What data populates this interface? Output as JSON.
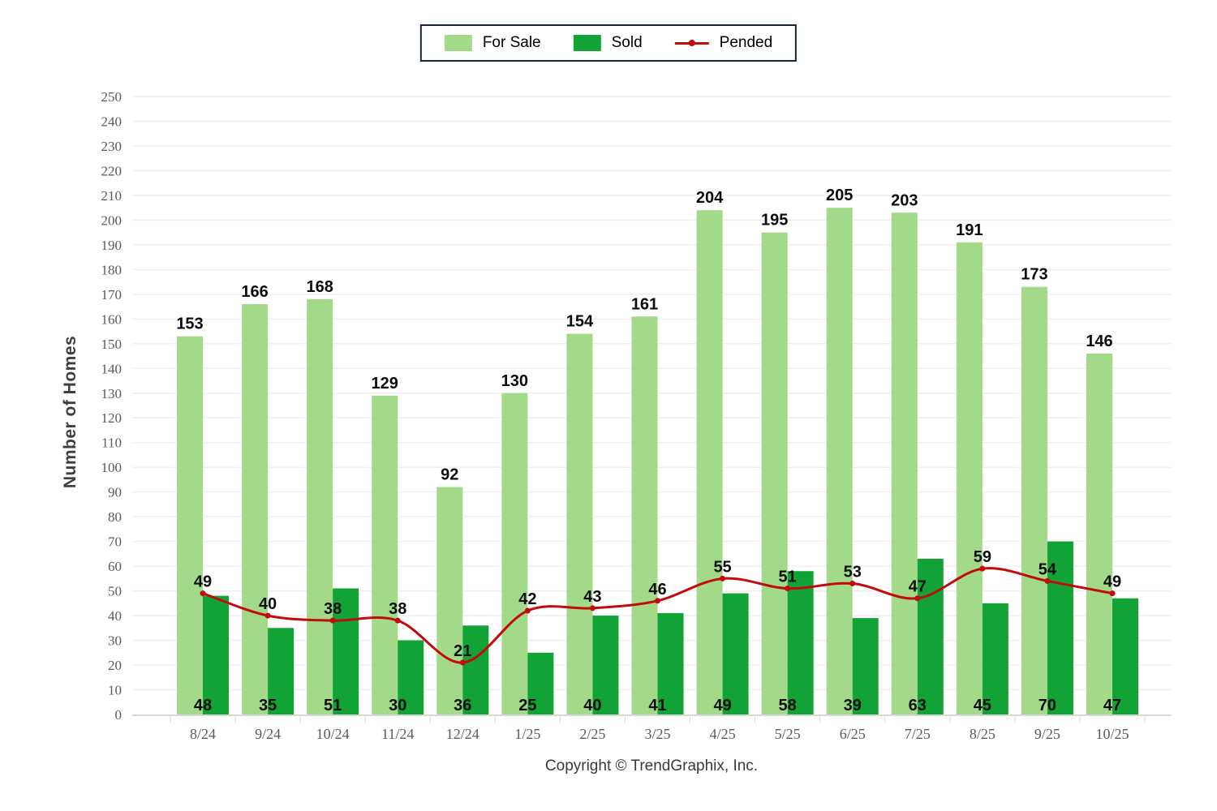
{
  "chart_data": {
    "type": "bar",
    "categories": [
      "8/24",
      "9/24",
      "10/24",
      "11/24",
      "12/24",
      "1/25",
      "2/25",
      "3/25",
      "4/25",
      "5/25",
      "6/25",
      "7/25",
      "8/25",
      "9/25",
      "10/25"
    ],
    "series": [
      {
        "name": "For Sale",
        "type": "bar",
        "color": "#a3da89",
        "values": [
          153,
          166,
          168,
          129,
          92,
          130,
          154,
          161,
          204,
          195,
          205,
          203,
          191,
          173,
          146
        ]
      },
      {
        "name": "Sold",
        "type": "bar",
        "color": "#12a336",
        "values": [
          48,
          35,
          51,
          30,
          36,
          25,
          40,
          41,
          49,
          58,
          39,
          63,
          45,
          70,
          47
        ]
      },
      {
        "name": "Pended",
        "type": "line",
        "color": "#c20b0b",
        "values": [
          49,
          40,
          38,
          38,
          21,
          42,
          43,
          46,
          55,
          51,
          53,
          47,
          59,
          54,
          49
        ]
      }
    ],
    "title": "",
    "xlabel": "",
    "ylabel": "Number of Homes",
    "ylim": [
      0,
      250
    ],
    "ytick_step": 10,
    "grid": true,
    "legend_position": "top-center"
  },
  "footer": {
    "copyright": "Copyright © TrendGraphix, Inc."
  }
}
